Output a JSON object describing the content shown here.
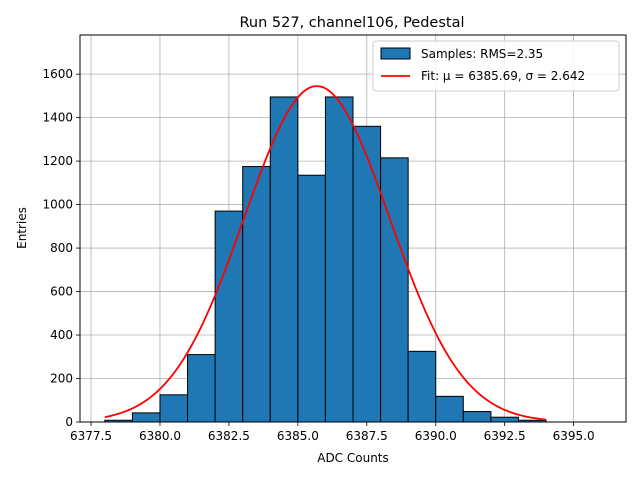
{
  "chart_data": {
    "type": "bar",
    "title": "Run 527, channel106, Pedestal",
    "xlabel": "ADC Counts",
    "ylabel": "Entries",
    "xlim": [
      6377.1,
      6396.9
    ],
    "ylim": [
      0,
      1780
    ],
    "xticks": [
      6377.5,
      6380.0,
      6382.5,
      6385.0,
      6387.5,
      6390.0,
      6392.5,
      6395.0
    ],
    "xtick_labels": [
      "6377.5",
      "6380.0",
      "6382.5",
      "6385.0",
      "6387.5",
      "6390.0",
      "6392.5",
      "6395.0"
    ],
    "yticks": [
      0,
      200,
      400,
      600,
      800,
      1000,
      1200,
      1400,
      1600
    ],
    "ytick_labels": [
      "0",
      "200",
      "400",
      "600",
      "800",
      "1000",
      "1200",
      "1400",
      "1600"
    ],
    "grid": true,
    "legend_position": "top-right",
    "bin_edges": [
      6378,
      6379,
      6380,
      6381,
      6382,
      6383,
      6384,
      6385,
      6386,
      6387,
      6388,
      6389,
      6390,
      6391,
      6392,
      6393,
      6394,
      6395,
      6396
    ],
    "series": [
      {
        "name": "Samples: RMS=2.35",
        "kind": "histogram",
        "color": "#1f77b4",
        "values": [
          8,
          42,
          125,
          310,
          970,
          1175,
          1495,
          1135,
          1495,
          1360,
          1215,
          325,
          118,
          48,
          22,
          8,
          0,
          0
        ]
      },
      {
        "name": "Fit: μ = 6385.69, σ = 2.642",
        "kind": "gaussian",
        "color": "#ff0000",
        "mu": 6385.69,
        "sigma": 2.642,
        "amplitude": 1545,
        "x_range": [
          6378,
          6394
        ]
      }
    ]
  }
}
